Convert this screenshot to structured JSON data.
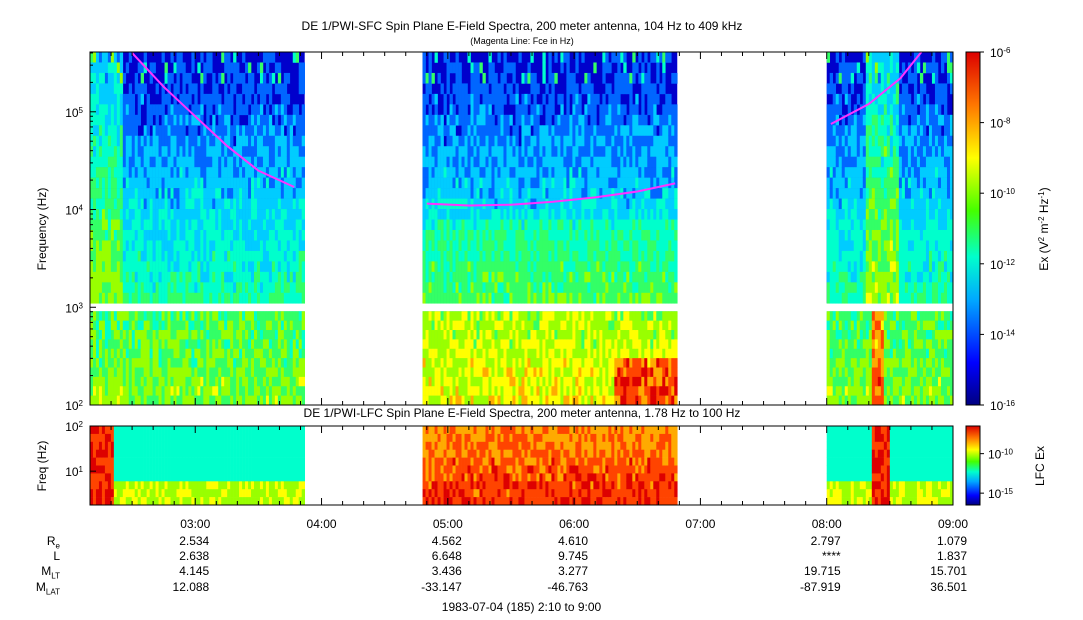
{
  "chart_data": [
    {
      "type": "heatmap",
      "title": "DE 1/PWI-SFC  Spin Plane E-Field Spectra, 200 meter antenna, 104 Hz to 409 kHz",
      "subtitle": "(Magenta Line: Fce in Hz)",
      "ylabel": "Frequency (Hz)",
      "y_scale": "log",
      "ylim": [
        100,
        409000
      ],
      "y_ticks": [
        {
          "value": 100,
          "label": "10",
          "exp": "2"
        },
        {
          "value": 1000,
          "label": "10",
          "exp": "3"
        },
        {
          "value": 10000,
          "label": "10",
          "exp": "4"
        },
        {
          "value": 100000,
          "label": "10",
          "exp": "5"
        }
      ],
      "x_time_range": [
        "02:10",
        "09:00"
      ],
      "data_segments": [
        [
          "02:10",
          "03:52"
        ],
        [
          "04:48",
          "06:49"
        ],
        [
          "08:00",
          "09:00"
        ]
      ],
      "colorbar": {
        "label": "Ex (V² m⁻² Hz⁻¹)",
        "scale": "log",
        "range": [
          1e-16,
          1e-06
        ],
        "ticks": [
          {
            "value": 1e-06,
            "label": "10",
            "exp": "-6"
          },
          {
            "value": 1e-08,
            "label": "10",
            "exp": "-8"
          },
          {
            "value": 1e-10,
            "label": "10",
            "exp": "-10"
          },
          {
            "value": 1e-12,
            "label": "10",
            "exp": "-12"
          },
          {
            "value": 1e-14,
            "label": "10",
            "exp": "-14"
          },
          {
            "value": 1e-16,
            "label": "10",
            "exp": "-16"
          }
        ]
      },
      "fce_line": {
        "color": "#ff33ff",
        "segments": [
          {
            "time": [
              "02:30",
              "02:45",
              "03:00",
              "03:15",
              "03:30",
              "03:47"
            ],
            "fce_hz": [
              400000,
              180000,
              90000,
              45000,
              25000,
              17000
            ]
          },
          {
            "time": [
              "04:50",
              "05:10",
              "05:30",
              "05:50",
              "06:10",
              "06:30",
              "06:48"
            ],
            "fce_hz": [
              11500,
              11000,
              11200,
              12000,
              13300,
              15300,
              18500
            ]
          },
          {
            "time": [
              "08:02",
              "08:20",
              "08:35",
              "08:45"
            ],
            "fce_hz": [
              75000,
              120000,
              220000,
              409000
            ]
          }
        ]
      }
    },
    {
      "type": "heatmap",
      "title": "DE 1/PWI-LFC  Spin Plane E-Field Spectra, 200 meter antenna, 1.78 Hz to 100 Hz",
      "ylabel": "Freq (Hz)",
      "y_scale": "log",
      "ylim": [
        1.78,
        100
      ],
      "y_ticks": [
        {
          "value": 10,
          "label": "10",
          "exp": "1"
        },
        {
          "value": 100,
          "label": "10",
          "exp": "2"
        }
      ],
      "data_segments": [
        [
          "02:10",
          "03:52"
        ],
        [
          "04:48",
          "06:49"
        ],
        [
          "08:00",
          "09:00"
        ]
      ],
      "colorbar": {
        "label": "LFC Ex",
        "scale": "log",
        "ticks": [
          {
            "value": 1e-10,
            "label": "10",
            "exp": "-10"
          },
          {
            "value": 1e-15,
            "label": "10",
            "exp": "-15"
          }
        ]
      }
    }
  ],
  "x_axis": {
    "ticks": [
      "03:00",
      "04:00",
      "05:00",
      "06:00",
      "07:00",
      "08:00",
      "09:00"
    ],
    "range": [
      "02:10",
      "09:00"
    ]
  },
  "ephemeris": {
    "labels": [
      {
        "main": "R",
        "sub": "e"
      },
      {
        "main": "L",
        "sub": ""
      },
      {
        "main": "M",
        "sub": "LT"
      },
      {
        "main": "M",
        "sub": "LAT"
      }
    ],
    "columns": [
      {
        "time": "03:00",
        "values": [
          "2.534",
          "2.638",
          "4.145",
          "12.088"
        ]
      },
      {
        "time": "05:00",
        "values": [
          "4.562",
          "6.648",
          "3.436",
          "-33.147"
        ]
      },
      {
        "time": "06:00",
        "values": [
          "4.610",
          "9.745",
          "3.277",
          "-46.763"
        ]
      },
      {
        "time": "08:00",
        "values": [
          "2.797",
          "****",
          "19.715",
          "-87.919"
        ]
      },
      {
        "time": "09:00",
        "values": [
          "1.079",
          "1.837",
          "15.701",
          "36.501"
        ]
      }
    ]
  },
  "footer": "1983-07-04 (185) 2:10 to 9:00"
}
